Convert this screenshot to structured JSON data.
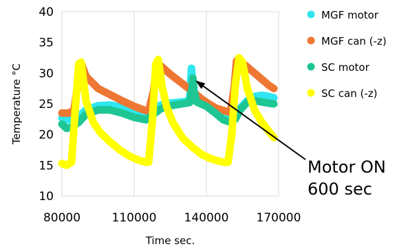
{
  "chart_data": {
    "type": "line",
    "title": "",
    "xlabel": "Time sec.",
    "ylabel": "Temperature °C",
    "xlim": [
      80000,
      170000
    ],
    "ylim": [
      10,
      40
    ],
    "xticks": [
      80000,
      110000,
      140000,
      170000
    ],
    "yticks": [
      10,
      15,
      20,
      25,
      30,
      35,
      40
    ],
    "grid": "vertical",
    "legend": "right",
    "series": [
      {
        "name": "MGF motor",
        "color": "#2FE6F0",
        "x": [
          80000,
          83000,
          86000,
          88000,
          90000,
          95000,
          100000,
          106000,
          110000,
          113000,
          115000,
          118000,
          121000,
          124000,
          127000,
          130000,
          133000,
          133800,
          134400,
          135000,
          136000,
          140000,
          144000,
          147000,
          150000,
          152000,
          154000,
          157000,
          160000,
          163000,
          166000,
          168000
        ],
        "y": [
          22.7,
          22.4,
          22.5,
          23.3,
          24.0,
          24.7,
          24.8,
          24.4,
          23.9,
          23.6,
          23.6,
          24.3,
          24.8,
          25.1,
          25.2,
          25.3,
          25.5,
          30.8,
          27.5,
          25.6,
          25.9,
          25.2,
          24.2,
          23.4,
          23.2,
          23.5,
          24.3,
          25.5,
          26.2,
          26.4,
          26.2,
          26.0
        ]
      },
      {
        "name": "MGF can (-z)",
        "color": "#EE7733",
        "x": [
          80000,
          83000,
          85000,
          86500,
          88000,
          90000,
          95000,
          100000,
          105000,
          110000,
          114000,
          116000,
          118000,
          119500,
          121000,
          123000,
          126000,
          129000,
          132000,
          135000,
          138000,
          141000,
          144000,
          148000,
          150000,
          151500,
          152500,
          154000,
          157000,
          160000,
          163000,
          166000,
          168000
        ],
        "y": [
          23.5,
          23.5,
          24.0,
          28.0,
          31.6,
          29.5,
          27.5,
          26.5,
          25.5,
          24.6,
          24.0,
          23.8,
          27.0,
          31.8,
          31.2,
          30.5,
          29.5,
          28.6,
          27.7,
          26.8,
          25.8,
          25.0,
          24.3,
          23.8,
          23.6,
          27.5,
          32.0,
          32.0,
          31.0,
          30.0,
          29.0,
          28.0,
          27.5
        ]
      },
      {
        "name": "SC motor",
        "color": "#1EC694",
        "x": [
          80000,
          82000,
          84000,
          87000,
          90000,
          95000,
          100000,
          105000,
          110000,
          115000,
          118000,
          121000,
          125000,
          130000,
          133000,
          134000,
          134400,
          134900,
          136000,
          140000,
          144000,
          147000,
          150000,
          152000,
          154000,
          157000,
          160000,
          163000,
          166000,
          168000
        ],
        "y": [
          21.7,
          21.0,
          21.2,
          22.0,
          23.3,
          24.0,
          24.0,
          23.5,
          22.8,
          22.4,
          23.3,
          24.2,
          24.7,
          25.0,
          25.2,
          27.5,
          29.2,
          27.0,
          25.3,
          24.6,
          23.4,
          22.4,
          22.0,
          22.5,
          24.0,
          25.3,
          25.5,
          25.3,
          25.1,
          25.0
        ]
      },
      {
        "name": "SC can (-z)",
        "color": "#FFFF00",
        "x": [
          80000,
          82000,
          84000,
          85500,
          87000,
          88000,
          90000,
          93000,
          96000,
          100000,
          104000,
          108000,
          112000,
          115000,
          116000,
          117500,
          119000,
          120000,
          121500,
          123500,
          126000,
          130000,
          134000,
          138000,
          141000,
          144000,
          147000,
          149000,
          150500,
          152000,
          153500,
          155000,
          157000,
          160000,
          163000,
          166000,
          168000
        ],
        "y": [
          15.3,
          15.0,
          15.5,
          24.0,
          31.5,
          31.8,
          25.5,
          22.0,
          20.3,
          18.8,
          17.5,
          16.5,
          15.8,
          15.5,
          15.5,
          22.0,
          31.5,
          32.2,
          28.0,
          24.5,
          22.0,
          19.5,
          18.0,
          16.8,
          16.2,
          15.8,
          15.5,
          15.5,
          20.0,
          28.0,
          32.5,
          31.8,
          27.5,
          24.0,
          22.0,
          20.5,
          19.5
        ]
      }
    ],
    "annotation": {
      "lines": [
        "Motor ON",
        "600 sec"
      ],
      "arrow_target": [
        134500,
        29.0
      ]
    }
  }
}
